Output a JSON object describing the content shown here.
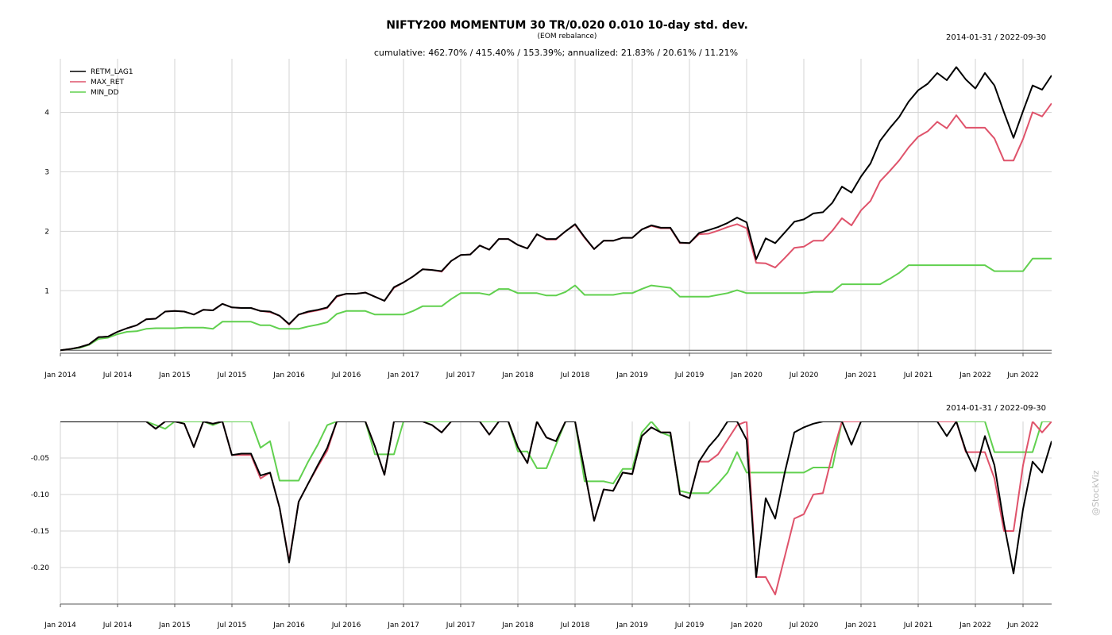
{
  "header": {
    "title": "NIFTY200 MOMENTUM 30 TR/0.020 0.010 10-day std. dev.",
    "subtitle": "(EOM rebalance)",
    "summary": "cumulative: 462.70% / 415.40% / 153.39%; annualized: 21.83% / 20.61% / 11.21%",
    "date_range_top": "2014-01-31 / 2022-09-30",
    "date_range_bottom": "2014-01-31 / 2022-09-30"
  },
  "watermark": "@StockViz",
  "colors": {
    "RETM_LAG1": "#000000",
    "MAX_RET": "#DF536B",
    "MIN_DD": "#61D04F"
  },
  "chart_data": [
    {
      "type": "line",
      "title": "NIFTY200 MOMENTUM 30 TR/0.020 0.010 10-day std. dev.",
      "x_tick_labels": [
        "Jan 2014",
        "Jul 2014",
        "Jan 2015",
        "Jul 2015",
        "Jan 2016",
        "Jul 2016",
        "Jan 2017",
        "Jul 2017",
        "Jan 2018",
        "Jul 2018",
        "Jan 2019",
        "Jul 2019",
        "Jan 2020",
        "Jul 2020",
        "Jan 2021",
        "Jul 2021",
        "Jan 2022",
        "Jun 2022"
      ],
      "y_tick_labels": [
        "1",
        "2",
        "3",
        "4"
      ],
      "ylim": [
        -0.05,
        4.9
      ],
      "legend_position": "top-left",
      "grid": true,
      "x": [
        "2014-01",
        "2014-02",
        "2014-03",
        "2014-04",
        "2014-05",
        "2014-06",
        "2014-07",
        "2014-08",
        "2014-09",
        "2014-10",
        "2014-11",
        "2014-12",
        "2015-01",
        "2015-02",
        "2015-03",
        "2015-04",
        "2015-05",
        "2015-06",
        "2015-07",
        "2015-08",
        "2015-09",
        "2015-10",
        "2015-11",
        "2015-12",
        "2016-01",
        "2016-02",
        "2016-03",
        "2016-04",
        "2016-05",
        "2016-06",
        "2016-07",
        "2016-08",
        "2016-09",
        "2016-10",
        "2016-11",
        "2016-12",
        "2017-01",
        "2017-02",
        "2017-03",
        "2017-04",
        "2017-05",
        "2017-06",
        "2017-07",
        "2017-08",
        "2017-09",
        "2017-10",
        "2017-11",
        "2017-12",
        "2018-01",
        "2018-02",
        "2018-03",
        "2018-04",
        "2018-05",
        "2018-06",
        "2018-07",
        "2018-08",
        "2018-09",
        "2018-10",
        "2018-11",
        "2018-12",
        "2019-01",
        "2019-02",
        "2019-03",
        "2019-04",
        "2019-05",
        "2019-06",
        "2019-07",
        "2019-08",
        "2019-09",
        "2019-10",
        "2019-11",
        "2019-12",
        "2020-01",
        "2020-02",
        "2020-03",
        "2020-04",
        "2020-05",
        "2020-06",
        "2020-07",
        "2020-08",
        "2020-09",
        "2020-10",
        "2020-11",
        "2020-12",
        "2021-01",
        "2021-02",
        "2021-03",
        "2021-04",
        "2021-05",
        "2021-06",
        "2021-07",
        "2021-08",
        "2021-09",
        "2021-10",
        "2021-11",
        "2021-12",
        "2022-01",
        "2022-02",
        "2022-03",
        "2022-04",
        "2022-05",
        "2022-06",
        "2022-07",
        "2022-08",
        "2022-09"
      ],
      "series": [
        {
          "name": "RETM_LAG1",
          "values": [
            0.0,
            0.02,
            0.05,
            0.1,
            0.22,
            0.23,
            0.31,
            0.37,
            0.42,
            0.52,
            0.53,
            0.65,
            0.66,
            0.65,
            0.6,
            0.68,
            0.67,
            0.78,
            0.72,
            0.71,
            0.71,
            0.66,
            0.65,
            0.58,
            0.44,
            0.6,
            0.65,
            0.68,
            0.72,
            0.91,
            0.95,
            0.95,
            0.97,
            0.9,
            0.83,
            1.06,
            1.14,
            1.24,
            1.36,
            1.35,
            1.33,
            1.5,
            1.6,
            1.61,
            1.76,
            1.69,
            1.87,
            1.87,
            1.77,
            1.71,
            1.95,
            1.87,
            1.87,
            2.0,
            2.12,
            1.9,
            1.7,
            1.84,
            1.84,
            1.89,
            1.89,
            2.03,
            2.1,
            2.06,
            2.06,
            1.81,
            1.8,
            1.97,
            2.02,
            2.07,
            2.14,
            2.23,
            2.15,
            1.53,
            1.88,
            1.8,
            1.98,
            2.16,
            2.2,
            2.3,
            2.32,
            2.48,
            2.75,
            2.65,
            2.92,
            3.14,
            3.52,
            3.73,
            3.92,
            4.18,
            4.37,
            4.48,
            4.66,
            4.54,
            4.76,
            4.55,
            4.4,
            4.66,
            4.45,
            4.0,
            3.57,
            4.02,
            4.45,
            4.38,
            4.62
          ]
        },
        {
          "name": "MAX_RET",
          "values": [
            0.0,
            0.02,
            0.05,
            0.1,
            0.22,
            0.23,
            0.31,
            0.37,
            0.42,
            0.52,
            0.53,
            0.65,
            0.66,
            0.65,
            0.6,
            0.68,
            0.67,
            0.78,
            0.72,
            0.71,
            0.71,
            0.66,
            0.64,
            0.58,
            0.43,
            0.6,
            0.64,
            0.67,
            0.71,
            0.9,
            0.95,
            0.95,
            0.97,
            0.9,
            0.83,
            1.05,
            1.14,
            1.24,
            1.36,
            1.35,
            1.32,
            1.5,
            1.6,
            1.61,
            1.76,
            1.69,
            1.87,
            1.87,
            1.77,
            1.71,
            1.95,
            1.86,
            1.86,
            2.0,
            2.11,
            1.89,
            1.7,
            1.84,
            1.84,
            1.89,
            1.89,
            2.03,
            2.09,
            2.05,
            2.05,
            1.8,
            1.8,
            1.95,
            1.96,
            2.01,
            2.07,
            2.12,
            2.05,
            1.47,
            1.46,
            1.39,
            1.55,
            1.72,
            1.74,
            1.84,
            1.84,
            2.01,
            2.22,
            2.1,
            2.35,
            2.51,
            2.84,
            3.01,
            3.19,
            3.41,
            3.59,
            3.68,
            3.84,
            3.73,
            3.95,
            3.74,
            3.74,
            3.74,
            3.56,
            3.19,
            3.19,
            3.55,
            4.0,
            3.93,
            4.15
          ]
        },
        {
          "name": "MIN_DD",
          "values": [
            0.0,
            0.02,
            0.04,
            0.09,
            0.19,
            0.21,
            0.27,
            0.31,
            0.32,
            0.36,
            0.37,
            0.37,
            0.37,
            0.38,
            0.38,
            0.38,
            0.36,
            0.48,
            0.48,
            0.48,
            0.48,
            0.42,
            0.42,
            0.36,
            0.36,
            0.36,
            0.4,
            0.43,
            0.47,
            0.61,
            0.66,
            0.66,
            0.66,
            0.6,
            0.6,
            0.6,
            0.6,
            0.66,
            0.74,
            0.74,
            0.74,
            0.86,
            0.96,
            0.96,
            0.96,
            0.93,
            1.03,
            1.03,
            0.96,
            0.96,
            0.96,
            0.92,
            0.92,
            0.98,
            1.09,
            0.93,
            0.93,
            0.93,
            0.93,
            0.96,
            0.96,
            1.03,
            1.09,
            1.07,
            1.05,
            0.9,
            0.9,
            0.9,
            0.9,
            0.93,
            0.96,
            1.01,
            0.96,
            0.96,
            0.96,
            0.96,
            0.96,
            0.96,
            0.96,
            0.98,
            0.98,
            0.98,
            1.11,
            1.11,
            1.11,
            1.11,
            1.11,
            1.2,
            1.3,
            1.43,
            1.43,
            1.43,
            1.43,
            1.43,
            1.43,
            1.43,
            1.43,
            1.43,
            1.33,
            1.33,
            1.33,
            1.33,
            1.54,
            1.54,
            1.54
          ]
        }
      ]
    },
    {
      "type": "line",
      "x_tick_labels": [
        "Jan 2014",
        "Jul 2014",
        "Jan 2015",
        "Jul 2015",
        "Jan 2016",
        "Jul 2016",
        "Jan 2017",
        "Jul 2017",
        "Jan 2018",
        "Jul 2018",
        "Jan 2019",
        "Jul 2019",
        "Jan 2020",
        "Jul 2020",
        "Jan 2021",
        "Jul 2021",
        "Jan 2022",
        "Jun 2022"
      ],
      "y_tick_labels": [
        "-0.05",
        "-0.10",
        "-0.15",
        "-0.20"
      ],
      "ylim": [
        -0.25,
        0.0
      ],
      "grid": true,
      "x": [
        "2014-01",
        "2014-02",
        "2014-03",
        "2014-04",
        "2014-05",
        "2014-06",
        "2014-07",
        "2014-08",
        "2014-09",
        "2014-10",
        "2014-11",
        "2014-12",
        "2015-01",
        "2015-02",
        "2015-03",
        "2015-04",
        "2015-05",
        "2015-06",
        "2015-07",
        "2015-08",
        "2015-09",
        "2015-10",
        "2015-11",
        "2015-12",
        "2016-01",
        "2016-02",
        "2016-03",
        "2016-04",
        "2016-05",
        "2016-06",
        "2016-07",
        "2016-08",
        "2016-09",
        "2016-10",
        "2016-11",
        "2016-12",
        "2017-01",
        "2017-02",
        "2017-03",
        "2017-04",
        "2017-05",
        "2017-06",
        "2017-07",
        "2017-08",
        "2017-09",
        "2017-10",
        "2017-11",
        "2017-12",
        "2018-01",
        "2018-02",
        "2018-03",
        "2018-04",
        "2018-05",
        "2018-06",
        "2018-07",
        "2018-08",
        "2018-09",
        "2018-10",
        "2018-11",
        "2018-12",
        "2019-01",
        "2019-02",
        "2019-03",
        "2019-04",
        "2019-05",
        "2019-06",
        "2019-07",
        "2019-08",
        "2019-09",
        "2019-10",
        "2019-11",
        "2019-12",
        "2020-01",
        "2020-02",
        "2020-03",
        "2020-04",
        "2020-05",
        "2020-06",
        "2020-07",
        "2020-08",
        "2020-09",
        "2020-10",
        "2020-11",
        "2020-12",
        "2021-01",
        "2021-02",
        "2021-03",
        "2021-04",
        "2021-05",
        "2021-06",
        "2021-07",
        "2021-08",
        "2021-09",
        "2021-10",
        "2021-11",
        "2021-12",
        "2022-01",
        "2022-02",
        "2022-03",
        "2022-04",
        "2022-05",
        "2022-06",
        "2022-07",
        "2022-08",
        "2022-09"
      ],
      "series": [
        {
          "name": "RETM_LAG1",
          "values": [
            0,
            0,
            0,
            0,
            0,
            0,
            0,
            0,
            0,
            0,
            -0.01,
            0,
            0,
            -0.003,
            -0.035,
            0,
            -0.003,
            0,
            -0.046,
            -0.044,
            -0.044,
            -0.074,
            -0.07,
            -0.118,
            -0.193,
            -0.11,
            -0.085,
            -0.06,
            -0.036,
            0,
            0,
            0,
            0,
            -0.034,
            -0.073,
            0,
            0,
            0,
            0,
            -0.005,
            -0.015,
            0,
            0,
            0,
            0,
            -0.018,
            0,
            0,
            -0.035,
            -0.057,
            0,
            -0.022,
            -0.027,
            0,
            0,
            -0.068,
            -0.136,
            -0.093,
            -0.095,
            -0.07,
            -0.072,
            -0.02,
            -0.008,
            -0.015,
            -0.015,
            -0.1,
            -0.105,
            -0.055,
            -0.035,
            -0.02,
            0,
            0,
            -0.025,
            -0.213,
            -0.105,
            -0.133,
            -0.07,
            -0.015,
            -0.008,
            -0.003,
            0,
            0,
            0,
            -0.032,
            0,
            0,
            0,
            0,
            0,
            0,
            0,
            0,
            0,
            -0.02,
            0,
            -0.04,
            -0.068,
            -0.02,
            -0.06,
            -0.14,
            -0.208,
            -0.12,
            -0.055,
            -0.07,
            -0.027
          ]
        },
        {
          "name": "MAX_RET",
          "values": [
            0,
            0,
            0,
            0,
            0,
            0,
            0,
            0,
            0,
            0,
            -0.01,
            0,
            0,
            -0.003,
            -0.035,
            0,
            -0.003,
            0,
            -0.046,
            -0.046,
            -0.046,
            -0.078,
            -0.07,
            -0.118,
            -0.191,
            -0.11,
            -0.085,
            -0.062,
            -0.04,
            0,
            0,
            0,
            0,
            -0.034,
            -0.073,
            0,
            0,
            0,
            0,
            -0.005,
            -0.015,
            0,
            0,
            0,
            0,
            -0.018,
            0,
            0,
            -0.035,
            -0.057,
            0,
            -0.022,
            -0.027,
            0,
            0,
            -0.068,
            -0.136,
            -0.093,
            -0.095,
            -0.07,
            -0.072,
            -0.02,
            -0.008,
            -0.015,
            -0.015,
            -0.1,
            -0.105,
            -0.055,
            -0.055,
            -0.045,
            -0.025,
            -0.005,
            0,
            -0.213,
            -0.213,
            -0.237,
            -0.185,
            -0.133,
            -0.127,
            -0.1,
            -0.098,
            -0.045,
            0,
            0,
            0,
            0,
            0,
            0,
            0,
            0,
            0,
            0,
            0,
            0,
            0,
            -0.042,
            -0.042,
            -0.042,
            -0.078,
            -0.15,
            -0.15,
            -0.06,
            0,
            -0.015,
            0
          ]
        },
        {
          "name": "MIN_DD",
          "values": [
            0,
            0,
            0,
            0,
            0,
            0,
            0,
            0,
            0,
            0,
            -0.005,
            -0.01,
            0,
            0,
            0,
            0,
            -0.005,
            0,
            0,
            0,
            0,
            -0.036,
            -0.027,
            -0.081,
            -0.081,
            -0.081,
            -0.055,
            -0.032,
            -0.005,
            0,
            0,
            0,
            0,
            -0.045,
            -0.045,
            -0.045,
            0,
            0,
            0,
            0,
            0,
            0,
            0,
            0,
            0,
            0,
            0,
            0,
            -0.041,
            -0.041,
            -0.064,
            -0.064,
            -0.032,
            0,
            0,
            -0.082,
            -0.082,
            -0.082,
            -0.085,
            -0.065,
            -0.065,
            -0.015,
            0,
            -0.015,
            -0.02,
            -0.095,
            -0.098,
            -0.098,
            -0.098,
            -0.085,
            -0.07,
            -0.042,
            -0.07,
            -0.07,
            -0.07,
            -0.07,
            -0.07,
            -0.07,
            -0.07,
            -0.063,
            -0.063,
            -0.063,
            0,
            0,
            0,
            0,
            0,
            0,
            0,
            0,
            0,
            0,
            0,
            0,
            0,
            0,
            0,
            0,
            -0.042,
            -0.042,
            -0.042,
            -0.042,
            -0.042,
            0,
            0
          ]
        }
      ]
    }
  ]
}
